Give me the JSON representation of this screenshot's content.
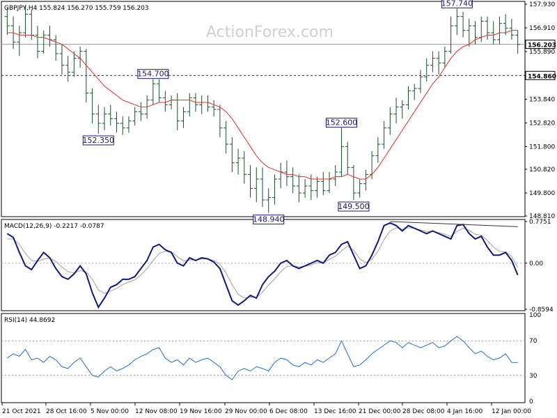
{
  "watermark": "ActionForex.com",
  "chart_data": {
    "type": "line",
    "symbol_header": "GBPJPY,H4  155.824 156.270 155.759 156.203",
    "x_labels": [
      "21 Oct 2021",
      "28 Oct 16:00",
      "5 Nov 00:00",
      "12 Nov 08:00",
      "19 Nov 16:00",
      "29 Nov 00:00",
      "6 Dec 08:00",
      "13 Dec 16:00",
      "21 Dec 00:00",
      "28 Dec 08:00",
      "4 Jan 16:00",
      "12 Jan 00:00"
    ],
    "price": {
      "y_ticks": [
        "157.930",
        "156.910",
        "155.890",
        "154.860",
        "153.840",
        "152.820",
        "151.800",
        "150.820",
        "149.800",
        "148.810"
      ],
      "ylim": [
        148.81,
        157.93
      ],
      "current_price": "156.203",
      "level_line": "154.860",
      "ma_color": "#e0302a",
      "bar_color": "#1a4f28",
      "series": [
        {
          "type": "ohlc",
          "points": [
            [
              157.4,
              157.8,
              156.6,
              157.0
            ],
            [
              157.0,
              157.4,
              156.0,
              156.3
            ],
            [
              156.3,
              157.0,
              155.7,
              156.7
            ],
            [
              156.7,
              157.9,
              156.5,
              157.5
            ],
            [
              157.5,
              157.7,
              156.4,
              156.6
            ],
            [
              156.6,
              157.0,
              155.6,
              155.9
            ],
            [
              155.9,
              156.8,
              155.8,
              156.6
            ],
            [
              156.6,
              157.0,
              156.1,
              156.4
            ],
            [
              156.4,
              156.6,
              155.5,
              155.8
            ],
            [
              155.8,
              156.2,
              154.9,
              155.3
            ],
            [
              155.3,
              155.7,
              154.6,
              155.0
            ],
            [
              155.0,
              155.9,
              154.8,
              155.6
            ],
            [
              155.6,
              156.1,
              155.2,
              155.9
            ],
            [
              155.9,
              156.0,
              153.7,
              154.1
            ],
            [
              154.1,
              154.3,
              152.8,
              153.2
            ],
            [
              153.2,
              153.6,
              152.35,
              152.8
            ],
            [
              152.8,
              153.5,
              152.5,
              153.2
            ],
            [
              153.2,
              153.6,
              152.7,
              153.0
            ],
            [
              153.0,
              153.3,
              152.4,
              152.8
            ],
            [
              152.8,
              153.1,
              152.3,
              152.6
            ],
            [
              152.6,
              153.1,
              152.4,
              152.9
            ],
            [
              152.9,
              153.5,
              152.7,
              153.3
            ],
            [
              153.3,
              153.7,
              152.9,
              153.2
            ],
            [
              153.2,
              154.0,
              153.0,
              153.8
            ],
            [
              153.8,
              154.7,
              153.6,
              154.5
            ],
            [
              154.5,
              154.7,
              153.7,
              153.9
            ],
            [
              153.9,
              154.2,
              153.3,
              153.6
            ],
            [
              153.6,
              154.0,
              153.4,
              153.8
            ],
            [
              153.8,
              154.1,
              152.5,
              152.9
            ],
            [
              152.9,
              153.5,
              152.6,
              153.3
            ],
            [
              153.3,
              154.1,
              153.1,
              153.9
            ],
            [
              153.9,
              154.1,
              153.3,
              153.6
            ],
            [
              153.6,
              154.0,
              153.2,
              153.7
            ],
            [
              153.7,
              154.0,
              153.3,
              153.5
            ],
            [
              153.5,
              153.8,
              153.1,
              153.4
            ],
            [
              153.4,
              153.6,
              152.2,
              152.6
            ],
            [
              152.6,
              152.9,
              151.5,
              151.9
            ],
            [
              151.9,
              152.2,
              150.7,
              151.1
            ],
            [
              151.1,
              151.7,
              150.6,
              151.3
            ],
            [
              151.3,
              151.6,
              150.2,
              150.6
            ],
            [
              150.6,
              151.0,
              149.6,
              150.0
            ],
            [
              150.0,
              150.9,
              149.4,
              150.4
            ],
            [
              150.4,
              150.9,
              149.2,
              149.5
            ],
            [
              149.5,
              150.0,
              148.94,
              149.6
            ],
            [
              149.6,
              150.6,
              149.3,
              150.4
            ],
            [
              150.4,
              151.1,
              150.0,
              150.7
            ],
            [
              150.7,
              151.2,
              150.1,
              150.5
            ],
            [
              150.5,
              150.9,
              149.8,
              150.1
            ],
            [
              150.1,
              150.6,
              149.4,
              149.8
            ],
            [
              149.8,
              150.4,
              149.6,
              150.1
            ],
            [
              150.1,
              150.6,
              149.5,
              149.9
            ],
            [
              149.9,
              150.5,
              149.6,
              150.3
            ],
            [
              150.3,
              150.7,
              149.7,
              149.9
            ],
            [
              149.9,
              150.7,
              149.8,
              150.4
            ],
            [
              150.4,
              151.0,
              150.1,
              150.7
            ],
            [
              150.7,
              152.6,
              150.5,
              151.8
            ],
            [
              151.8,
              152.0,
              150.6,
              150.9
            ],
            [
              150.9,
              151.0,
              149.5,
              149.8
            ],
            [
              149.8,
              150.4,
              149.6,
              150.2
            ],
            [
              150.2,
              150.8,
              149.9,
              150.6
            ],
            [
              150.6,
              151.6,
              150.4,
              151.4
            ],
            [
              151.4,
              152.2,
              151.1,
              151.9
            ],
            [
              151.9,
              152.9,
              151.7,
              152.6
            ],
            [
              152.6,
              153.5,
              152.3,
              153.2
            ],
            [
              153.2,
              153.9,
              152.8,
              153.5
            ],
            [
              153.5,
              153.8,
              153.0,
              153.6
            ],
            [
              153.6,
              154.4,
              153.4,
              154.2
            ],
            [
              154.2,
              154.5,
              153.8,
              154.3
            ],
            [
              154.3,
              155.1,
              154.1,
              154.8
            ],
            [
              154.8,
              155.6,
              154.6,
              155.3
            ],
            [
              155.3,
              155.9,
              155.0,
              155.6
            ],
            [
              155.6,
              155.9,
              154.9,
              155.4
            ],
            [
              155.4,
              156.1,
              155.2,
              155.9
            ],
            [
              155.9,
              157.4,
              155.8,
              157.0
            ],
            [
              157.0,
              157.74,
              156.6,
              157.4
            ],
            [
              157.4,
              157.6,
              156.5,
              156.8
            ],
            [
              156.8,
              157.3,
              156.1,
              157.0
            ],
            [
              157.0,
              157.2,
              156.2,
              156.5
            ],
            [
              156.5,
              157.4,
              156.3,
              157.2
            ],
            [
              157.2,
              157.4,
              156.4,
              156.7
            ],
            [
              156.7,
              157.2,
              156.2,
              156.4
            ],
            [
              156.4,
              157.4,
              156.2,
              157.1
            ],
            [
              157.1,
              157.5,
              156.6,
              156.9
            ],
            [
              156.9,
              157.3,
              156.4,
              156.6
            ],
            [
              156.6,
              156.8,
              155.8,
              156.2
            ]
          ]
        },
        {
          "type": "ma",
          "values": [
            156.7,
            156.7,
            156.6,
            156.6,
            156.6,
            156.5,
            156.5,
            156.4,
            156.3,
            156.2,
            156.0,
            155.8,
            155.6,
            155.3,
            155.0,
            154.7,
            154.4,
            154.2,
            154.0,
            153.8,
            153.7,
            153.6,
            153.5,
            153.5,
            153.6,
            153.7,
            153.7,
            153.8,
            153.8,
            153.8,
            153.8,
            153.7,
            153.7,
            153.7,
            153.6,
            153.5,
            153.3,
            153.0,
            152.6,
            152.2,
            151.8,
            151.4,
            151.1,
            150.9,
            150.8,
            150.7,
            150.6,
            150.6,
            150.5,
            150.5,
            150.4,
            150.4,
            150.4,
            150.4,
            150.5,
            150.5,
            150.6,
            150.5,
            150.4,
            150.4,
            150.6,
            150.9,
            151.3,
            151.7,
            152.1,
            152.5,
            152.9,
            153.3,
            153.7,
            154.1,
            154.5,
            154.8,
            155.2,
            155.6,
            155.9,
            156.1,
            156.2,
            156.4,
            156.5,
            156.6,
            156.6,
            156.7,
            156.7,
            156.8,
            156.8
          ]
        }
      ],
      "callouts": [
        {
          "label": "157.740",
          "bar": 74
        },
        {
          "label": "154.700",
          "bar": 24
        },
        {
          "label": "152.350",
          "bar": 15
        },
        {
          "label": "152.600",
          "bar": 55
        },
        {
          "label": "148.940",
          "bar": 43
        },
        {
          "label": "149.500",
          "bar": 57
        }
      ]
    },
    "macd": {
      "title": "MACD(12,26,9) -0.2217 -0.0787",
      "y_ticks": [
        "0.7751",
        "0.00",
        "-0.8594"
      ],
      "ylim": [
        -0.8594,
        0.7751
      ],
      "macd_color": "#0c1a7a",
      "signal_color": "#a0a0a0",
      "macd_values": [
        0.55,
        0.48,
        0.2,
        -0.05,
        -0.12,
        0.05,
        0.2,
        0.1,
        -0.1,
        -0.25,
        -0.3,
        -0.2,
        -0.05,
        -0.2,
        -0.55,
        -0.82,
        -0.65,
        -0.45,
        -0.4,
        -0.3,
        -0.3,
        -0.25,
        -0.1,
        0.05,
        0.3,
        0.35,
        0.25,
        0.2,
        0.0,
        -0.05,
        0.1,
        0.05,
        0.1,
        0.08,
        0.02,
        -0.1,
        -0.4,
        -0.7,
        -0.78,
        -0.7,
        -0.6,
        -0.65,
        -0.4,
        -0.25,
        -0.15,
        0.0,
        0.05,
        -0.05,
        -0.1,
        -0.05,
        0.0,
        0.05,
        0.0,
        0.15,
        0.2,
        0.35,
        0.4,
        0.15,
        -0.1,
        -0.05,
        0.15,
        0.4,
        0.7,
        0.75,
        0.7,
        0.6,
        0.7,
        0.65,
        0.6,
        0.55,
        0.6,
        0.55,
        0.5,
        0.45,
        0.7,
        0.72,
        0.55,
        0.45,
        0.5,
        0.3,
        0.15,
        0.15,
        0.2,
        0.05,
        -0.22
      ],
      "signal_values": [
        0.45,
        0.45,
        0.35,
        0.18,
        0.05,
        0.03,
        0.08,
        0.09,
        0.03,
        -0.07,
        -0.16,
        -0.18,
        -0.14,
        -0.16,
        -0.3,
        -0.5,
        -0.56,
        -0.52,
        -0.47,
        -0.4,
        -0.35,
        -0.31,
        -0.22,
        -0.1,
        0.05,
        0.18,
        0.22,
        0.21,
        0.12,
        0.04,
        0.06,
        0.06,
        0.08,
        0.08,
        0.05,
        -0.02,
        -0.18,
        -0.4,
        -0.58,
        -0.65,
        -0.63,
        -0.64,
        -0.54,
        -0.41,
        -0.29,
        -0.16,
        -0.06,
        -0.05,
        -0.07,
        -0.06,
        -0.03,
        0.01,
        0.0,
        0.07,
        0.13,
        0.23,
        0.32,
        0.24,
        0.08,
        0.01,
        0.07,
        0.22,
        0.44,
        0.6,
        0.66,
        0.63,
        0.66,
        0.65,
        0.62,
        0.59,
        0.59,
        0.57,
        0.54,
        0.5,
        0.59,
        0.65,
        0.61,
        0.54,
        0.52,
        0.42,
        0.3,
        0.22,
        0.21,
        0.13,
        -0.08
      ],
      "trendline_from_bar": 63,
      "trendline_to_bar": 84,
      "trendline_values": [
        0.7751,
        0.68
      ]
    },
    "rsi": {
      "title": "RSI(14) 44.8692",
      "y_ticks": [
        "100",
        "70",
        "30",
        "0"
      ],
      "ylim": [
        0,
        100
      ],
      "levels": [
        70,
        30
      ],
      "color": "#1e6fd0",
      "values": [
        50,
        55,
        52,
        60,
        48,
        50,
        45,
        52,
        48,
        40,
        38,
        45,
        50,
        40,
        30,
        28,
        35,
        40,
        35,
        38,
        42,
        48,
        52,
        55,
        60,
        62,
        50,
        45,
        48,
        42,
        50,
        45,
        48,
        50,
        45,
        40,
        30,
        25,
        35,
        38,
        35,
        40,
        38,
        35,
        45,
        50,
        48,
        42,
        40,
        45,
        42,
        48,
        45,
        50,
        55,
        70,
        55,
        40,
        42,
        48,
        55,
        60,
        65,
        70,
        68,
        62,
        68,
        65,
        62,
        65,
        68,
        62,
        64,
        70,
        75,
        70,
        62,
        55,
        58,
        52,
        48,
        50,
        55,
        45,
        44.87
      ]
    }
  }
}
